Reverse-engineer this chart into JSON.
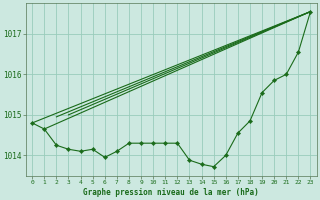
{
  "title": "Graphe pression niveau de la mer (hPa)",
  "bg_color": "#cce8e0",
  "grid_color": "#99ccbb",
  "line_color": "#1a6b1a",
  "marker_color": "#1a6b1a",
  "label_color": "#1a6b1a",
  "xlim": [
    -0.5,
    23.5
  ],
  "ylim": [
    1013.5,
    1017.75
  ],
  "yticks": [
    1014,
    1015,
    1016,
    1017
  ],
  "xticks": [
    0,
    1,
    2,
    3,
    4,
    5,
    6,
    7,
    8,
    9,
    10,
    11,
    12,
    13,
    14,
    15,
    16,
    17,
    18,
    19,
    20,
    21,
    22,
    23
  ],
  "main_series": [
    1014.8,
    1014.65,
    1014.25,
    1014.15,
    1014.1,
    1014.15,
    1013.95,
    1014.1,
    1014.3,
    1014.3,
    1014.3,
    1014.3,
    1014.3,
    1013.88,
    1013.78,
    1013.72,
    1014.0,
    1014.55,
    1014.85,
    1015.55,
    1015.85,
    1016.0,
    1016.55,
    1017.55
  ],
  "straight_lines": [
    {
      "x0": 0,
      "y0": 1014.8,
      "x1": 23,
      "y1": 1017.55
    },
    {
      "x0": 1,
      "y0": 1014.65,
      "x1": 23,
      "y1": 1017.55
    },
    {
      "x0": 2,
      "y0": 1014.95,
      "x1": 23,
      "y1": 1017.55
    },
    {
      "x0": 3,
      "y0": 1015.0,
      "x1": 23,
      "y1": 1017.55
    }
  ],
  "figsize": [
    3.2,
    2.0
  ],
  "dpi": 100
}
